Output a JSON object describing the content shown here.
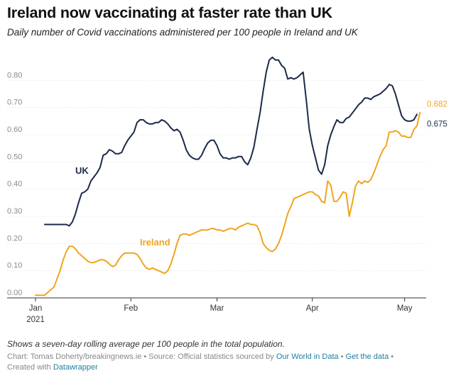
{
  "title": "Ireland now vaccinating at faster rate than UK",
  "subtitle": "Daily number of Covid vaccinations administered per 100 people in Ireland and UK",
  "notes": "Shows a seven-day rolling average per 100 people in the total population.",
  "source": {
    "prefix": "Chart: Tomas Doherty/breakingnews.ie • Source: Official statistics sourced by",
    "link1": "Our World in Data",
    "sep": "•",
    "link2": "Get the data",
    "created_prefix": "Created with",
    "link3": "Datawrapper"
  },
  "chart_data": {
    "type": "line",
    "ylim": [
      0,
      0.9
    ],
    "yticks": [
      "0.00",
      "0.10",
      "0.20",
      "0.30",
      "0.40",
      "0.50",
      "0.60",
      "0.70",
      "0.80"
    ],
    "xticks": [
      {
        "label": "Jan",
        "sub": "2021",
        "day": 1
      },
      {
        "label": "Feb",
        "day": 32
      },
      {
        "label": "Mar",
        "day": 60
      },
      {
        "label": "Apr",
        "day": 91
      },
      {
        "label": "May",
        "day": 121
      }
    ],
    "grid": true,
    "series": [
      {
        "name": "UK",
        "color": "#1b2a4a",
        "end_label": "0.675",
        "points": [
          [
            4,
            0.27
          ],
          [
            8,
            0.27
          ],
          [
            11,
            0.27
          ],
          [
            12,
            0.265
          ],
          [
            13,
            0.28
          ],
          [
            14,
            0.31
          ],
          [
            15,
            0.35
          ],
          [
            16,
            0.385
          ],
          [
            17,
            0.39
          ],
          [
            18,
            0.4
          ],
          [
            19,
            0.43
          ],
          [
            20,
            0.445
          ],
          [
            21,
            0.46
          ],
          [
            22,
            0.48
          ],
          [
            23,
            0.525
          ],
          [
            24,
            0.53
          ],
          [
            25,
            0.545
          ],
          [
            26,
            0.54
          ],
          [
            27,
            0.53
          ],
          [
            28,
            0.53
          ],
          [
            29,
            0.535
          ],
          [
            30,
            0.56
          ],
          [
            31,
            0.58
          ],
          [
            32,
            0.595
          ],
          [
            33,
            0.61
          ],
          [
            34,
            0.645
          ],
          [
            35,
            0.655
          ],
          [
            36,
            0.655
          ],
          [
            37,
            0.645
          ],
          [
            38,
            0.64
          ],
          [
            39,
            0.64
          ],
          [
            40,
            0.645
          ],
          [
            41,
            0.645
          ],
          [
            42,
            0.655
          ],
          [
            43,
            0.65
          ],
          [
            44,
            0.64
          ],
          [
            45,
            0.625
          ],
          [
            46,
            0.615
          ],
          [
            47,
            0.62
          ],
          [
            48,
            0.61
          ],
          [
            49,
            0.58
          ],
          [
            50,
            0.545
          ],
          [
            51,
            0.525
          ],
          [
            52,
            0.515
          ],
          [
            53,
            0.51
          ],
          [
            54,
            0.51
          ],
          [
            55,
            0.525
          ],
          [
            56,
            0.55
          ],
          [
            57,
            0.57
          ],
          [
            58,
            0.58
          ],
          [
            59,
            0.58
          ],
          [
            60,
            0.56
          ],
          [
            61,
            0.53
          ],
          [
            62,
            0.515
          ],
          [
            63,
            0.515
          ],
          [
            64,
            0.51
          ],
          [
            65,
            0.515
          ],
          [
            66,
            0.515
          ],
          [
            67,
            0.52
          ],
          [
            68,
            0.52
          ],
          [
            69,
            0.5
          ],
          [
            70,
            0.49
          ],
          [
            71,
            0.515
          ],
          [
            72,
            0.555
          ],
          [
            73,
            0.62
          ],
          [
            74,
            0.68
          ],
          [
            75,
            0.76
          ],
          [
            76,
            0.83
          ],
          [
            77,
            0.875
          ],
          [
            78,
            0.885
          ],
          [
            79,
            0.875
          ],
          [
            80,
            0.875
          ],
          [
            81,
            0.855
          ],
          [
            82,
            0.845
          ],
          [
            83,
            0.805
          ],
          [
            84,
            0.81
          ],
          [
            85,
            0.805
          ],
          [
            86,
            0.81
          ],
          [
            87,
            0.82
          ],
          [
            88,
            0.83
          ],
          [
            89,
            0.73
          ],
          [
            90,
            0.62
          ],
          [
            91,
            0.56
          ],
          [
            92,
            0.515
          ],
          [
            93,
            0.47
          ],
          [
            94,
            0.455
          ],
          [
            95,
            0.49
          ],
          [
            96,
            0.56
          ],
          [
            97,
            0.6
          ],
          [
            98,
            0.63
          ],
          [
            99,
            0.655
          ],
          [
            100,
            0.645
          ],
          [
            101,
            0.645
          ],
          [
            102,
            0.66
          ],
          [
            103,
            0.665
          ],
          [
            104,
            0.68
          ],
          [
            105,
            0.695
          ],
          [
            106,
            0.71
          ],
          [
            107,
            0.72
          ],
          [
            108,
            0.735
          ],
          [
            109,
            0.735
          ],
          [
            110,
            0.73
          ],
          [
            111,
            0.74
          ],
          [
            112,
            0.745
          ],
          [
            113,
            0.75
          ],
          [
            114,
            0.76
          ],
          [
            115,
            0.77
          ],
          [
            116,
            0.785
          ],
          [
            117,
            0.78
          ],
          [
            118,
            0.75
          ],
          [
            119,
            0.71
          ],
          [
            120,
            0.67
          ],
          [
            121,
            0.655
          ],
          [
            122,
            0.65
          ],
          [
            123,
            0.65
          ],
          [
            124,
            0.655
          ],
          [
            125,
            0.675
          ]
        ]
      },
      {
        "name": "Ireland",
        "color": "#f0a51e",
        "end_label": "0.682",
        "points": [
          [
            1,
            0.01
          ],
          [
            2,
            0.01
          ],
          [
            3,
            0.01
          ],
          [
            4,
            0.01
          ],
          [
            5,
            0.02
          ],
          [
            6,
            0.03
          ],
          [
            7,
            0.04
          ],
          [
            8,
            0.07
          ],
          [
            9,
            0.1
          ],
          [
            10,
            0.14
          ],
          [
            11,
            0.17
          ],
          [
            12,
            0.19
          ],
          [
            13,
            0.19
          ],
          [
            14,
            0.18
          ],
          [
            15,
            0.165
          ],
          [
            16,
            0.155
          ],
          [
            17,
            0.145
          ],
          [
            18,
            0.135
          ],
          [
            19,
            0.13
          ],
          [
            20,
            0.13
          ],
          [
            21,
            0.135
          ],
          [
            22,
            0.14
          ],
          [
            23,
            0.14
          ],
          [
            24,
            0.135
          ],
          [
            25,
            0.125
          ],
          [
            26,
            0.115
          ],
          [
            27,
            0.12
          ],
          [
            28,
            0.14
          ],
          [
            29,
            0.155
          ],
          [
            30,
            0.165
          ],
          [
            31,
            0.165
          ],
          [
            32,
            0.165
          ],
          [
            33,
            0.165
          ],
          [
            34,
            0.16
          ],
          [
            35,
            0.145
          ],
          [
            36,
            0.125
          ],
          [
            37,
            0.11
          ],
          [
            38,
            0.105
          ],
          [
            39,
            0.11
          ],
          [
            40,
            0.105
          ],
          [
            41,
            0.1
          ],
          [
            42,
            0.095
          ],
          [
            43,
            0.09
          ],
          [
            44,
            0.1
          ],
          [
            45,
            0.125
          ],
          [
            46,
            0.16
          ],
          [
            47,
            0.2
          ],
          [
            48,
            0.23
          ],
          [
            49,
            0.235
          ],
          [
            50,
            0.235
          ],
          [
            51,
            0.23
          ],
          [
            52,
            0.235
          ],
          [
            53,
            0.24
          ],
          [
            54,
            0.245
          ],
          [
            55,
            0.25
          ],
          [
            56,
            0.25
          ],
          [
            57,
            0.25
          ],
          [
            58,
            0.255
          ],
          [
            59,
            0.255
          ],
          [
            60,
            0.25
          ],
          [
            61,
            0.25
          ],
          [
            62,
            0.245
          ],
          [
            63,
            0.25
          ],
          [
            64,
            0.255
          ],
          [
            65,
            0.255
          ],
          [
            66,
            0.25
          ],
          [
            67,
            0.26
          ],
          [
            68,
            0.265
          ],
          [
            69,
            0.27
          ],
          [
            70,
            0.275
          ],
          [
            71,
            0.27
          ],
          [
            72,
            0.27
          ],
          [
            73,
            0.265
          ],
          [
            74,
            0.24
          ],
          [
            75,
            0.2
          ],
          [
            76,
            0.185
          ],
          [
            77,
            0.175
          ],
          [
            78,
            0.17
          ],
          [
            79,
            0.18
          ],
          [
            80,
            0.2
          ],
          [
            81,
            0.23
          ],
          [
            82,
            0.27
          ],
          [
            83,
            0.31
          ],
          [
            84,
            0.335
          ],
          [
            85,
            0.365
          ],
          [
            86,
            0.37
          ],
          [
            87,
            0.375
          ],
          [
            88,
            0.38
          ],
          [
            89,
            0.385
          ],
          [
            90,
            0.39
          ],
          [
            91,
            0.39
          ],
          [
            92,
            0.38
          ],
          [
            93,
            0.375
          ],
          [
            94,
            0.355
          ],
          [
            95,
            0.35
          ],
          [
            96,
            0.43
          ],
          [
            97,
            0.415
          ],
          [
            98,
            0.355
          ],
          [
            99,
            0.355
          ],
          [
            100,
            0.37
          ],
          [
            101,
            0.39
          ],
          [
            102,
            0.385
          ],
          [
            103,
            0.3
          ],
          [
            104,
            0.35
          ],
          [
            105,
            0.41
          ],
          [
            106,
            0.43
          ],
          [
            107,
            0.42
          ],
          [
            108,
            0.43
          ],
          [
            109,
            0.425
          ],
          [
            110,
            0.435
          ],
          [
            111,
            0.46
          ],
          [
            112,
            0.49
          ],
          [
            113,
            0.52
          ],
          [
            114,
            0.545
          ],
          [
            115,
            0.56
          ],
          [
            116,
            0.61
          ],
          [
            117,
            0.61
          ],
          [
            118,
            0.615
          ],
          [
            119,
            0.61
          ],
          [
            120,
            0.595
          ],
          [
            121,
            0.595
          ],
          [
            122,
            0.59
          ],
          [
            123,
            0.59
          ],
          [
            124,
            0.62
          ],
          [
            125,
            0.632
          ],
          [
            126,
            0.682
          ]
        ]
      }
    ]
  }
}
